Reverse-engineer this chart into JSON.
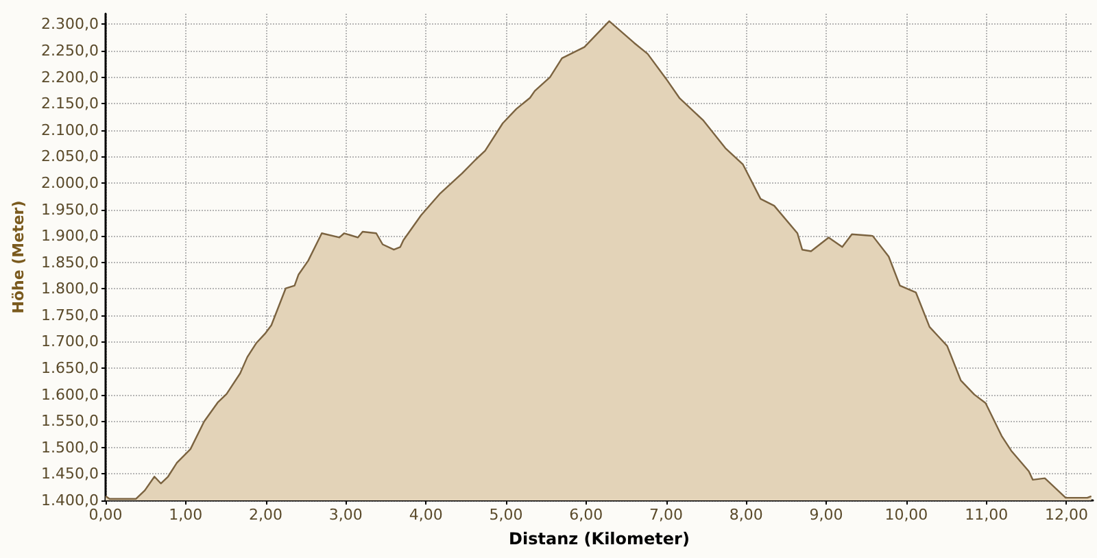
{
  "chart_data": {
    "type": "area",
    "xlabel": "Distanz (Kilometer)",
    "ylabel": "Höhe (Meter)",
    "x": [
      0,
      0.05,
      0.38,
      0.49,
      0.61,
      0.69,
      0.78,
      0.89,
      1.06,
      1.23,
      1.4,
      1.51,
      1.68,
      1.77,
      1.88,
      1.99,
      2.07,
      2.25,
      2.36,
      2.41,
      2.53,
      2.7,
      2.92,
      2.98,
      3.15,
      3.21,
      3.38,
      3.46,
      3.6,
      3.68,
      3.72,
      3.94,
      4.17,
      4.45,
      4.62,
      4.74,
      4.96,
      5.13,
      5.3,
      5.36,
      5.55,
      5.7,
      5.98,
      6.29,
      6.6,
      6.77,
      7.0,
      7.17,
      7.46,
      7.74,
      7.96,
      8.18,
      8.35,
      8.64,
      8.7,
      8.81,
      9.03,
      9.2,
      9.32,
      9.58,
      9.78,
      9.92,
      10.12,
      10.29,
      10.4,
      10.51,
      10.68,
      10.85,
      10.99,
      11.19,
      11.31,
      11.53,
      11.58,
      11.73,
      11.99,
      12.26,
      12.31
    ],
    "series": [
      {
        "color": "#e3d3b8",
        "values": [
          1408,
          1403,
          1403,
          1419,
          1445,
          1432,
          1445,
          1471,
          1497,
          1549,
          1585,
          1601,
          1640,
          1671,
          1697,
          1715,
          1731,
          1801,
          1806,
          1827,
          1853,
          1905,
          1897,
          1905,
          1897,
          1908,
          1905,
          1884,
          1874,
          1879,
          1892,
          1939,
          1979,
          2018,
          2044,
          2061,
          2113,
          2140,
          2161,
          2174,
          2200,
          2236,
          2257,
          2306,
          2265,
          2244,
          2197,
          2160,
          2119,
          2066,
          2035,
          1970,
          1957,
          1905,
          1874,
          1871,
          1897,
          1879,
          1903,
          1900,
          1861,
          1806,
          1793,
          1728,
          1710,
          1692,
          1627,
          1600,
          1584,
          1522,
          1494,
          1455,
          1439,
          1442,
          1405,
          1405,
          1408
        ]
      }
    ],
    "xlim": [
      0,
      12.33
    ],
    "ylim": [
      1400,
      2320
    ],
    "xticks": [
      {
        "value": 0,
        "label": "0,00"
      },
      {
        "value": 1,
        "label": "1,00"
      },
      {
        "value": 2,
        "label": "2,00"
      },
      {
        "value": 3,
        "label": "3,00"
      },
      {
        "value": 4,
        "label": "4,00"
      },
      {
        "value": 5,
        "label": "5,00"
      },
      {
        "value": 6,
        "label": "6,00"
      },
      {
        "value": 7,
        "label": "7,00"
      },
      {
        "value": 8,
        "label": "8,00"
      },
      {
        "value": 9,
        "label": "9,00"
      },
      {
        "value": 10,
        "label": "10,00"
      },
      {
        "value": 11,
        "label": "11,00"
      },
      {
        "value": 12,
        "label": "12,00"
      }
    ],
    "yticks": [
      {
        "value": 1400,
        "label": "1.400,0"
      },
      {
        "value": 1450,
        "label": "1.450,0"
      },
      {
        "value": 1500,
        "label": "1.500,0"
      },
      {
        "value": 1550,
        "label": "1.550,0"
      },
      {
        "value": 1600,
        "label": "1.600,0"
      },
      {
        "value": 1650,
        "label": "1.650,0"
      },
      {
        "value": 1700,
        "label": "1.700,0"
      },
      {
        "value": 1750,
        "label": "1.750,0"
      },
      {
        "value": 1800,
        "label": "1.800,0"
      },
      {
        "value": 1850,
        "label": "1.850,0"
      },
      {
        "value": 1900,
        "label": "1.900,0"
      },
      {
        "value": 1950,
        "label": "1.950,0"
      },
      {
        "value": 2000,
        "label": "2.000,0"
      },
      {
        "value": 2050,
        "label": "2.050,0"
      },
      {
        "value": 2100,
        "label": "2.100,0"
      },
      {
        "value": 2150,
        "label": "2.150,0"
      },
      {
        "value": 2200,
        "label": "2.200,0"
      },
      {
        "value": 2250,
        "label": "2.250,0"
      },
      {
        "value": 2300,
        "label": "2.300,0"
      }
    ],
    "grid": true,
    "marker": "none",
    "line_style": "solid"
  }
}
